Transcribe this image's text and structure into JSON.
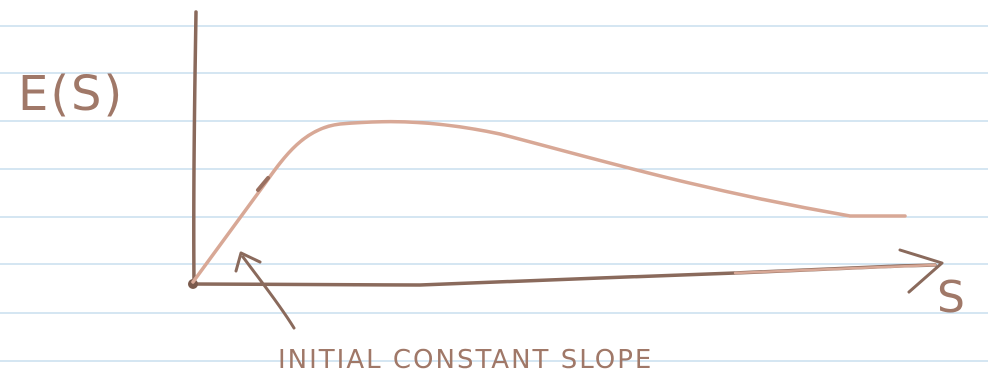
{
  "y_axis_label": "E(S)",
  "x_axis_label": "S",
  "annotation": "INITIAL CONSTANT SLOPE",
  "colors": {
    "paper": "#ffffff",
    "ruled_line": "#bcd6ea",
    "axes_ink": "#8a6a5c",
    "curve_ink": "#d8a896",
    "label_ink": "#a07868"
  }
}
